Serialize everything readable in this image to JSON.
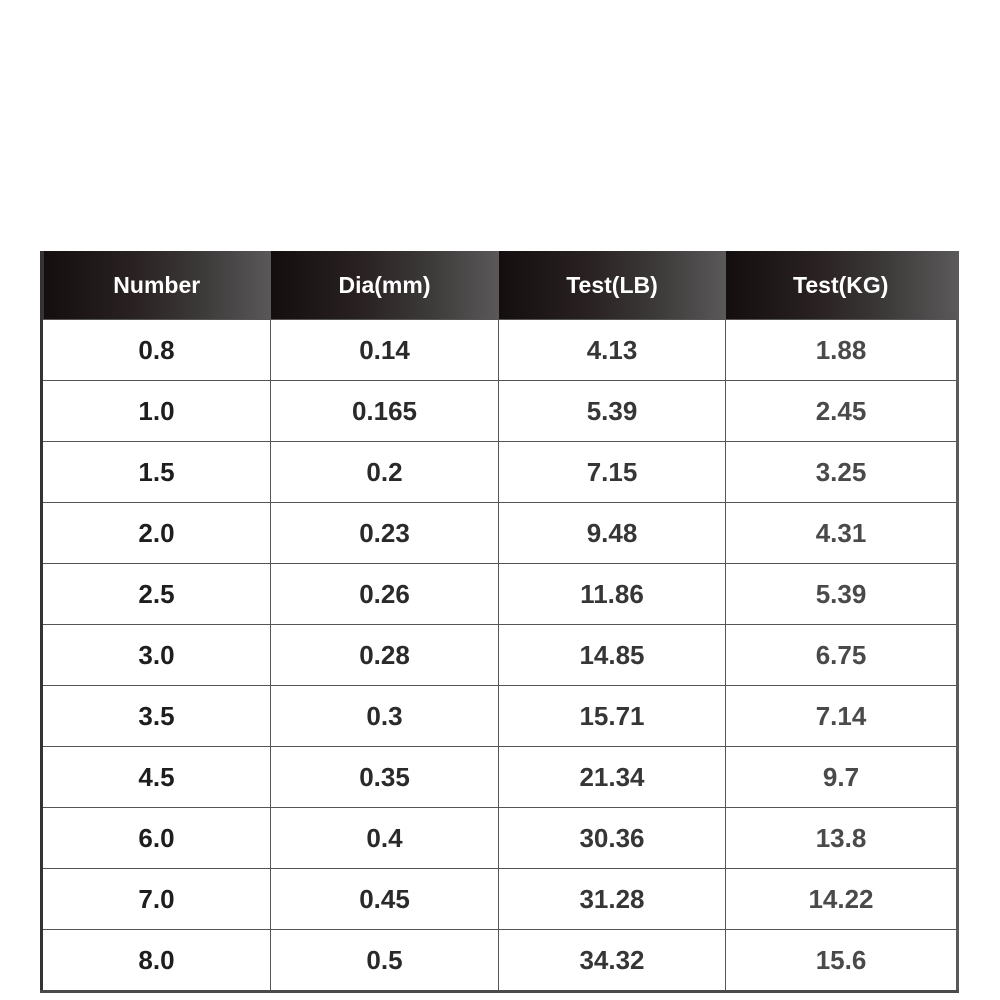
{
  "table": {
    "headers": [
      "Number",
      "Dia(mm)",
      "Test(LB)",
      "Test(KG)"
    ],
    "rows": [
      [
        "0.8",
        "0.14",
        "4.13",
        "1.88"
      ],
      [
        "1.0",
        "0.165",
        "5.39",
        "2.45"
      ],
      [
        "1.5",
        "0.2",
        "7.15",
        "3.25"
      ],
      [
        "2.0",
        "0.23",
        "9.48",
        "4.31"
      ],
      [
        "2.5",
        "0.26",
        "11.86",
        "5.39"
      ],
      [
        "3.0",
        "0.28",
        "14.85",
        "6.75"
      ],
      [
        "3.5",
        "0.3",
        "15.71",
        "7.14"
      ],
      [
        "4.5",
        "0.35",
        "21.34",
        "9.7"
      ],
      [
        "6.0",
        "0.4",
        "30.36",
        "13.8"
      ],
      [
        "7.0",
        "0.45",
        "31.28",
        "14.22"
      ],
      [
        "8.0",
        "0.5",
        "34.32",
        "15.6"
      ]
    ]
  },
  "colors": {
    "header_bg_start": "#140e0e",
    "header_bg_end": "#5a5858",
    "header_text": "#ffffff",
    "cell_text": "#2a2a2a"
  }
}
